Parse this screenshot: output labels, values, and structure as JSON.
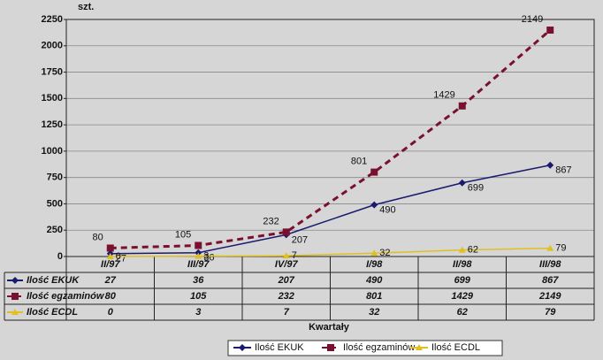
{
  "chart_data": {
    "type": "line",
    "y_label": "szt.",
    "x_label": "Kwartały",
    "categories": [
      "II/97",
      "III/97",
      "IV/97",
      "I/98",
      "II/98",
      "III/98"
    ],
    "series": [
      {
        "name": "Ilość EKUK",
        "color": "#1a1a6e",
        "marker": "diamond",
        "dash": "solid",
        "values": [
          27,
          36,
          207,
          490,
          699,
          867
        ]
      },
      {
        "name": "Ilość egzaminów",
        "color": "#7a1030",
        "marker": "square",
        "dash": "dashed",
        "values": [
          80,
          105,
          232,
          801,
          1429,
          2149
        ]
      },
      {
        "name": "Ilość ECDL",
        "color": "#e0c020",
        "marker": "triangle",
        "dash": "solid",
        "values": [
          0,
          3,
          7,
          32,
          62,
          79
        ]
      }
    ],
    "ylim": [
      0,
      2250
    ],
    "yticks": [
      0,
      250,
      500,
      750,
      1000,
      1250,
      1500,
      1750,
      2000,
      2250
    ],
    "grid": true
  }
}
